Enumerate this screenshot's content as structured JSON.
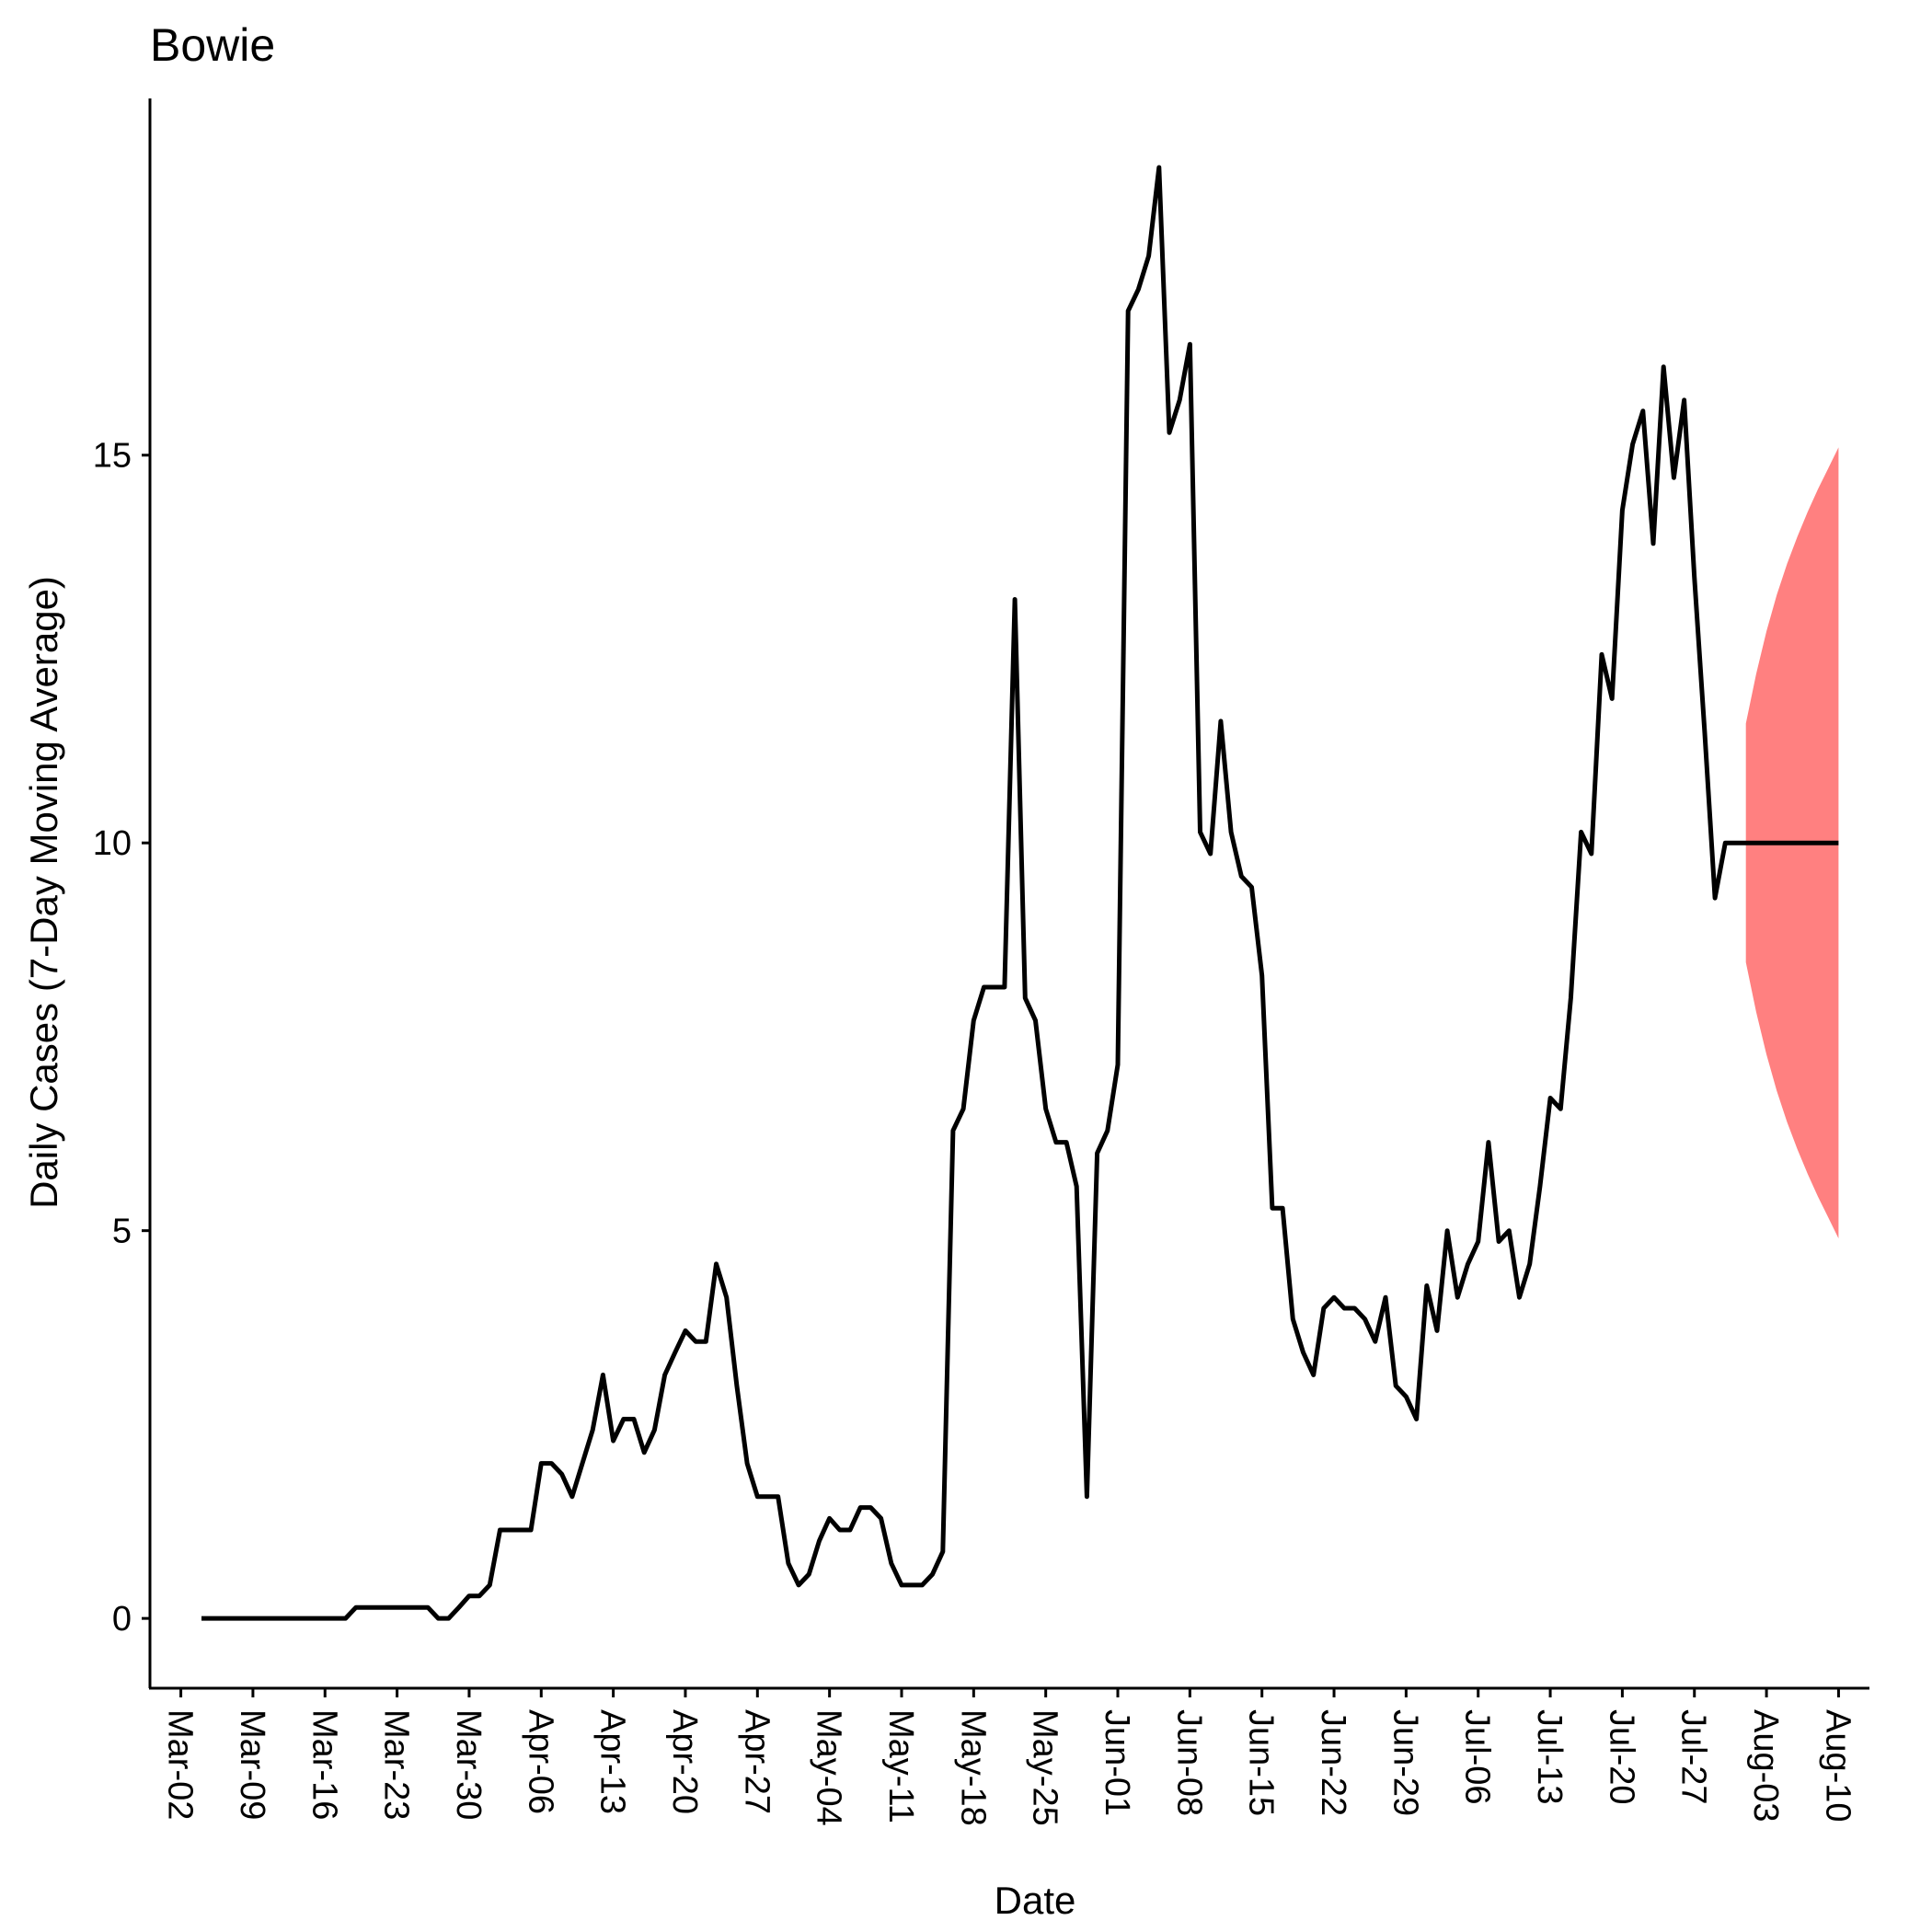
{
  "chart_data": {
    "type": "line",
    "title": "Bowie",
    "xlabel": "Date",
    "ylabel": "Daily Cases (7-Day Moving Average)",
    "x_tick_labels": [
      "Mar-02",
      "Mar-09",
      "Mar-16",
      "Mar-23",
      "Mar-30",
      "Apr-06",
      "Apr-13",
      "Apr-20",
      "Apr-27",
      "May-04",
      "May-11",
      "May-18",
      "May-25",
      "Jun-01",
      "Jun-08",
      "Jun-15",
      "Jun-22",
      "Jun-29",
      "Jul-06",
      "Jul-13",
      "Jul-20",
      "Jul-27",
      "Aug-03",
      "Aug-10"
    ],
    "y_ticks": [
      0,
      5,
      10,
      15
    ],
    "ylim": [
      -0.9,
      19.6
    ],
    "xlim": [
      "2020-02-28",
      "2020-08-13"
    ],
    "grid": false,
    "legend": "none",
    "series": [
      {
        "color": "#000000",
        "x": [
          "2020-03-04",
          "2020-03-05",
          "2020-03-06",
          "2020-03-07",
          "2020-03-08",
          "2020-03-09",
          "2020-03-10",
          "2020-03-11",
          "2020-03-12",
          "2020-03-13",
          "2020-03-14",
          "2020-03-15",
          "2020-03-16",
          "2020-03-17",
          "2020-03-18",
          "2020-03-19",
          "2020-03-20",
          "2020-03-21",
          "2020-03-22",
          "2020-03-23",
          "2020-03-24",
          "2020-03-25",
          "2020-03-26",
          "2020-03-27",
          "2020-03-28",
          "2020-03-29",
          "2020-03-30",
          "2020-03-31",
          "2020-04-01",
          "2020-04-02",
          "2020-04-03",
          "2020-04-04",
          "2020-04-05",
          "2020-04-06",
          "2020-04-07",
          "2020-04-08",
          "2020-04-09",
          "2020-04-10",
          "2020-04-11",
          "2020-04-12",
          "2020-04-13",
          "2020-04-14",
          "2020-04-15",
          "2020-04-16",
          "2020-04-17",
          "2020-04-18",
          "2020-04-19",
          "2020-04-20",
          "2020-04-21",
          "2020-04-22",
          "2020-04-23",
          "2020-04-24",
          "2020-04-25",
          "2020-04-26",
          "2020-04-27",
          "2020-04-28",
          "2020-04-29",
          "2020-04-30",
          "2020-05-01",
          "2020-05-02",
          "2020-05-03",
          "2020-05-04",
          "2020-05-05",
          "2020-05-06",
          "2020-05-07",
          "2020-05-08",
          "2020-05-09",
          "2020-05-10",
          "2020-05-11",
          "2020-05-12",
          "2020-05-13",
          "2020-05-14",
          "2020-05-15",
          "2020-05-16",
          "2020-05-17",
          "2020-05-18",
          "2020-05-19",
          "2020-05-20",
          "2020-05-21",
          "2020-05-22",
          "2020-05-23",
          "2020-05-24",
          "2020-05-25",
          "2020-05-26",
          "2020-05-27",
          "2020-05-28",
          "2020-05-29",
          "2020-05-30",
          "2020-05-31",
          "2020-06-01",
          "2020-06-02",
          "2020-06-03",
          "2020-06-04",
          "2020-06-05",
          "2020-06-06",
          "2020-06-07",
          "2020-06-08",
          "2020-06-09",
          "2020-06-10",
          "2020-06-11",
          "2020-06-12",
          "2020-06-13",
          "2020-06-14",
          "2020-06-15",
          "2020-06-16",
          "2020-06-17",
          "2020-06-18",
          "2020-06-19",
          "2020-06-20",
          "2020-06-21",
          "2020-06-22",
          "2020-06-23",
          "2020-06-24",
          "2020-06-25",
          "2020-06-26",
          "2020-06-27",
          "2020-06-28",
          "2020-06-29",
          "2020-06-30",
          "2020-07-01",
          "2020-07-02",
          "2020-07-03",
          "2020-07-04",
          "2020-07-05",
          "2020-07-06",
          "2020-07-07",
          "2020-07-08",
          "2020-07-09",
          "2020-07-10",
          "2020-07-11",
          "2020-07-12",
          "2020-07-13",
          "2020-07-14",
          "2020-07-15",
          "2020-07-16",
          "2020-07-17",
          "2020-07-18",
          "2020-07-19",
          "2020-07-20",
          "2020-07-21",
          "2020-07-22",
          "2020-07-23",
          "2020-07-24",
          "2020-07-25",
          "2020-07-26",
          "2020-07-27",
          "2020-07-28",
          "2020-07-29",
          "2020-07-30",
          "2020-07-31",
          "2020-08-01",
          "2020-08-02",
          "2020-08-03",
          "2020-08-04",
          "2020-08-05",
          "2020-08-06",
          "2020-08-07",
          "2020-08-08",
          "2020-08-09",
          "2020-08-10"
        ],
        "y": [
          0,
          0,
          0,
          0,
          0,
          0,
          0,
          0,
          0,
          0,
          0,
          0,
          0,
          0,
          0,
          0.14,
          0.14,
          0.14,
          0.14,
          0.14,
          0.14,
          0.14,
          0.14,
          0,
          0,
          0.14,
          0.29,
          0.29,
          0.43,
          1.14,
          1.14,
          1.14,
          1.14,
          2.0,
          2.0,
          1.86,
          1.57,
          2.0,
          2.43,
          3.14,
          2.29,
          2.57,
          2.57,
          2.14,
          2.43,
          3.14,
          3.43,
          3.71,
          3.57,
          3.57,
          4.57,
          4.14,
          3.0,
          2.0,
          1.57,
          1.57,
          1.57,
          0.71,
          0.43,
          0.57,
          1.0,
          1.29,
          1.14,
          1.14,
          1.43,
          1.43,
          1.29,
          0.71,
          0.43,
          0.43,
          0.43,
          0.57,
          0.86,
          6.29,
          6.57,
          7.71,
          8.14,
          8.14,
          8.14,
          13.14,
          8.0,
          7.71,
          6.57,
          6.14,
          6.14,
          5.57,
          1.57,
          6.0,
          6.29,
          7.14,
          16.86,
          17.14,
          17.57,
          18.71,
          15.29,
          15.71,
          16.43,
          10.14,
          9.86,
          11.57,
          10.14,
          9.57,
          9.43,
          8.29,
          5.29,
          5.29,
          3.86,
          3.43,
          3.14,
          4.0,
          4.14,
          4.0,
          4.0,
          3.86,
          3.57,
          4.14,
          3.0,
          2.86,
          2.57,
          4.29,
          3.71,
          5.0,
          4.14,
          4.57,
          4.86,
          6.14,
          4.86,
          5.0,
          4.14,
          4.57,
          5.57,
          6.71,
          6.57,
          8.0,
          10.14,
          9.86,
          12.43,
          11.86,
          14.29,
          15.14,
          15.57,
          13.86,
          16.14,
          14.71,
          15.71,
          13.43,
          11.43,
          9.29,
          10,
          10,
          10,
          10,
          10,
          10,
          10,
          10,
          10,
          10,
          10,
          10
        ]
      }
    ],
    "forecast_band": {
      "color": "#FF8080",
      "x": [
        "2020-08-01",
        "2020-08-02",
        "2020-08-03",
        "2020-08-04",
        "2020-08-05",
        "2020-08-06",
        "2020-08-07",
        "2020-08-08",
        "2020-08-09",
        "2020-08-10"
      ],
      "lower": [
        8.46,
        7.82,
        7.27,
        6.8,
        6.4,
        6.05,
        5.73,
        5.44,
        5.17,
        4.9
      ],
      "upper": [
        11.54,
        12.18,
        12.73,
        13.2,
        13.6,
        13.95,
        14.27,
        14.56,
        14.83,
        15.1
      ]
    }
  }
}
